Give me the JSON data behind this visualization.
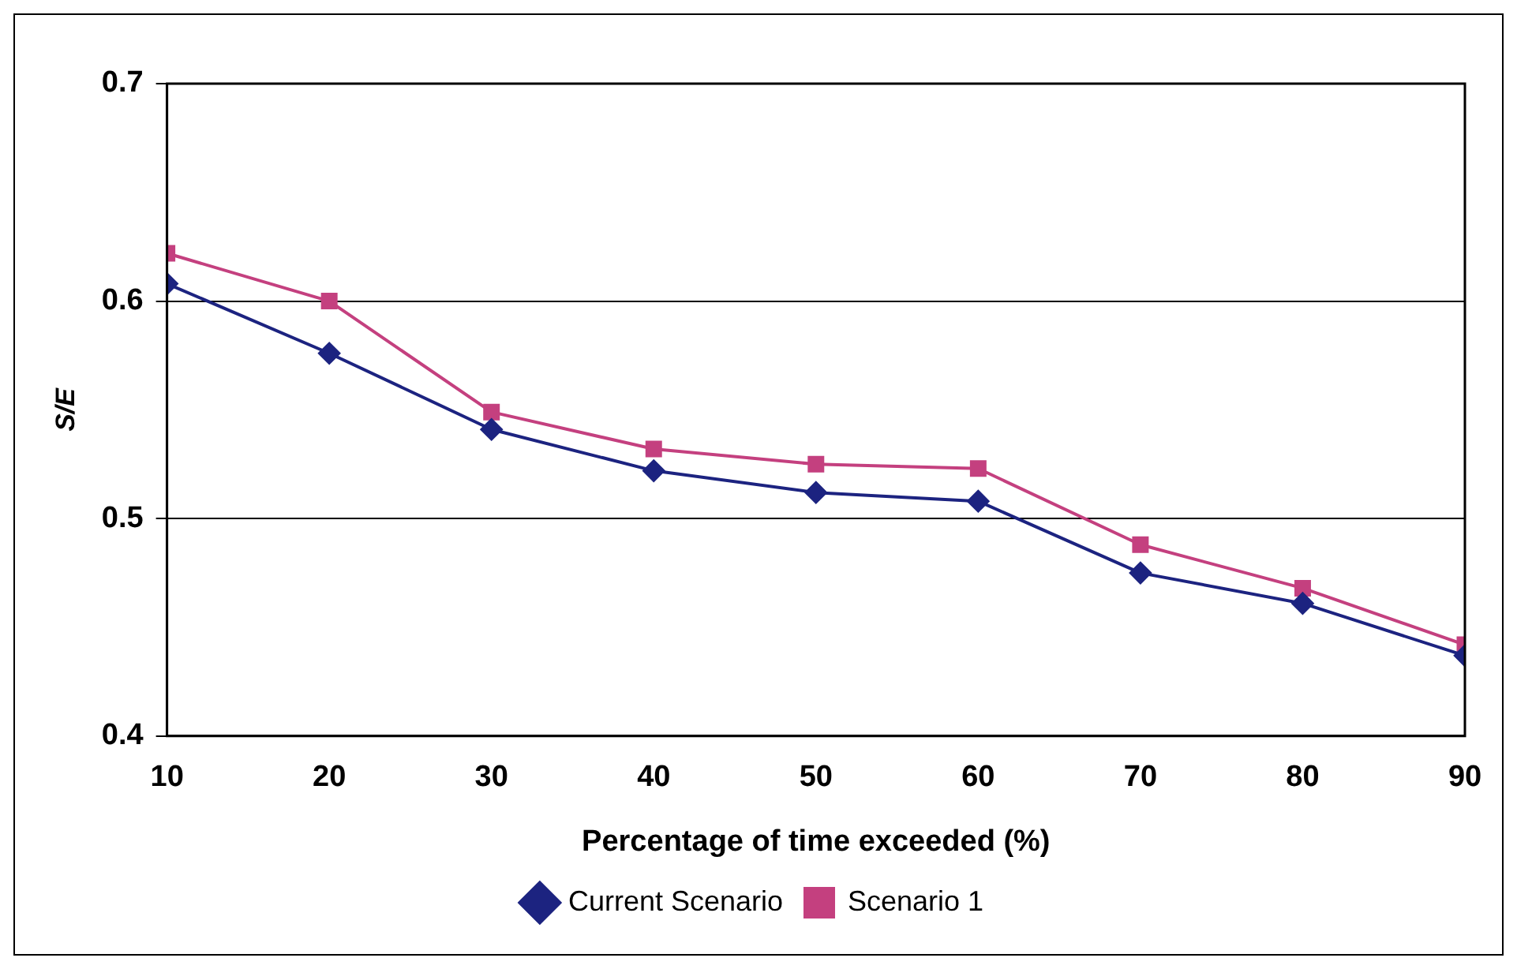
{
  "chart_data": {
    "type": "line",
    "xlabel": "Percentage of time exceeded (%)",
    "ylabel": "S/E",
    "x": [
      10,
      20,
      30,
      40,
      50,
      60,
      70,
      80,
      90
    ],
    "series": [
      {
        "name": "Current Scenario",
        "color": "#1c2380",
        "marker": "diamond",
        "values": [
          0.608,
          0.576,
          0.541,
          0.522,
          0.512,
          0.508,
          0.475,
          0.461,
          0.437
        ]
      },
      {
        "name": "Scenario 1",
        "color": "#c4407f",
        "marker": "square",
        "values": [
          0.622,
          0.6,
          0.549,
          0.532,
          0.525,
          0.523,
          0.488,
          0.468,
          0.442
        ]
      }
    ],
    "xlim": [
      10,
      90
    ],
    "xticks": [
      10,
      20,
      30,
      40,
      50,
      60,
      70,
      80,
      90
    ],
    "ylim": [
      0.4,
      0.7
    ],
    "yticks": [
      0.4,
      0.5,
      0.6,
      0.7
    ],
    "grid": "y",
    "legend": "bottom"
  }
}
